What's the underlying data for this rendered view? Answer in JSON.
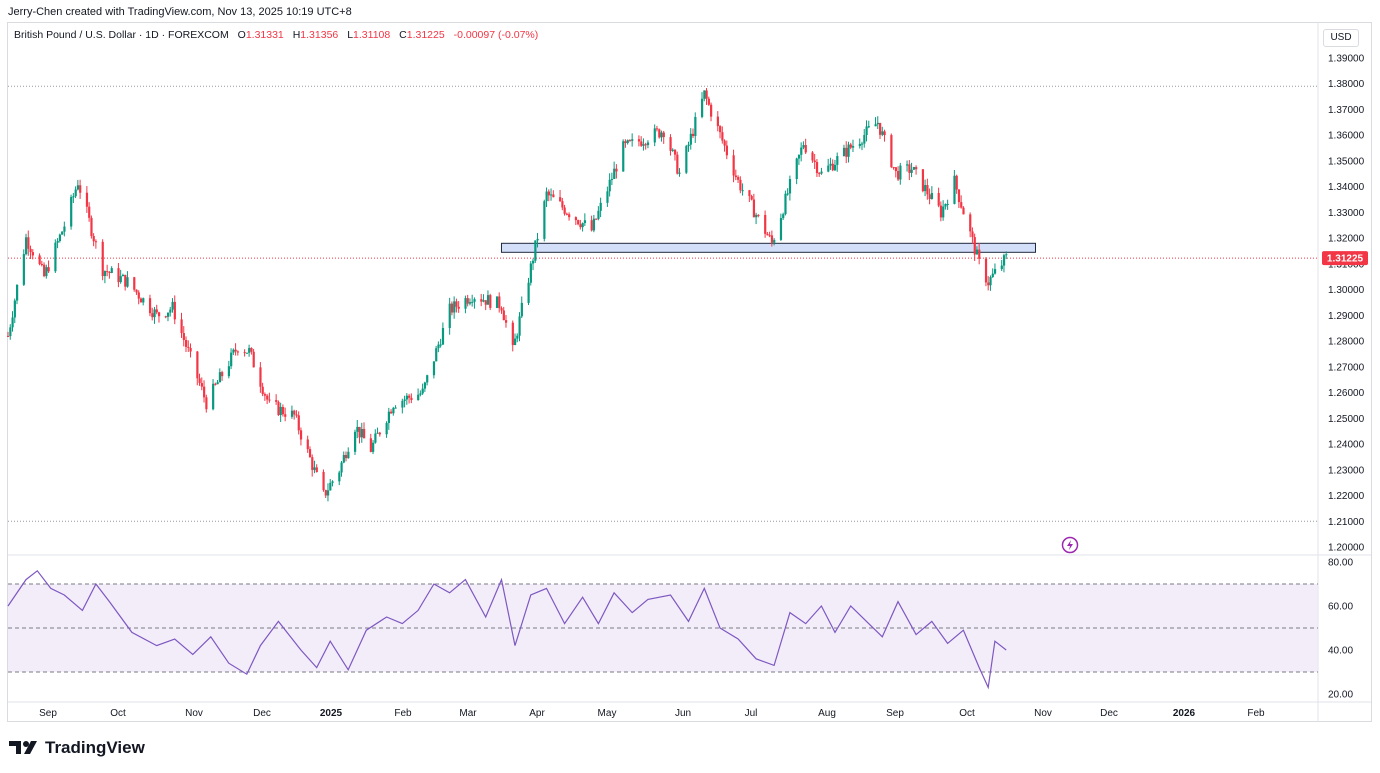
{
  "header": {
    "created_by": "Jerry-Chen created with TradingView.com, Nov 13, 2025 10:19 UTC+8"
  },
  "legend": {
    "symbol": "British Pound / U.S. Dollar · 1D · FOREXCOM",
    "open_label": "O",
    "open": "1.31331",
    "high_label": "H",
    "high": "1.31356",
    "low_label": "L",
    "low": "1.31108",
    "close_label": "C",
    "close": "1.31225",
    "change": "-0.00097 (-0.07%)"
  },
  "currency_button": "USD",
  "last_price_tag": "1.31225",
  "brand": {
    "name": "TradingView"
  },
  "colors": {
    "up": "#089981",
    "down": "#f23645",
    "rsi_line": "#7e57c2",
    "rsi_band": "#ede7f6",
    "zone_fill": "#c8d7f7",
    "zone_stroke": "#1f2a3f"
  },
  "chart_data": {
    "type": "candlestick",
    "title": "British Pound / U.S. Dollar · 1D · FOREXCOM",
    "ylim": [
      1.2,
      1.39
    ],
    "price_ticks": [
      "1.39000",
      "1.38000",
      "1.37000",
      "1.36000",
      "1.35000",
      "1.34000",
      "1.33000",
      "1.32000",
      "1.31000",
      "1.30000",
      "1.29000",
      "1.28000",
      "1.27000",
      "1.26000",
      "1.25000",
      "1.24000",
      "1.23000",
      "1.22000",
      "1.21000",
      "1.20000"
    ],
    "x_ticks": [
      "Sep",
      "Oct",
      "Nov",
      "Dec",
      "2025",
      "Feb",
      "Mar",
      "Apr",
      "May",
      "Jun",
      "Jul",
      "Aug",
      "Sep",
      "Oct",
      "Nov",
      "Dec",
      "2026",
      "Feb"
    ],
    "path_dates": [
      "2024-08-26",
      "2024-09-03",
      "2024-09-06",
      "2024-09-11",
      "2024-09-20",
      "2024-09-26",
      "2024-10-07",
      "2024-10-18",
      "2024-10-31",
      "2024-11-07",
      "2024-11-22",
      "2024-12-06",
      "2024-12-11",
      "2024-12-20",
      "2024-12-31",
      "2025-01-13",
      "2025-01-20",
      "2025-01-27",
      "2025-02-03",
      "2025-02-13",
      "2025-02-26",
      "2025-03-10",
      "2025-03-20",
      "2025-04-02",
      "2025-04-07",
      "2025-04-22",
      "2025-05-12",
      "2025-05-26",
      "2025-06-13",
      "2025-06-20",
      "2025-07-01",
      "2025-07-16",
      "2025-07-31",
      "2025-08-14",
      "2025-08-22",
      "2025-09-16",
      "2025-09-24",
      "2025-10-01",
      "2025-10-14",
      "2025-10-20",
      "2025-10-31",
      "2025-11-04",
      "2025-11-12"
    ],
    "path_closes": [
      1.282,
      1.32,
      1.315,
      1.305,
      1.325,
      1.342,
      1.308,
      1.303,
      1.29,
      1.293,
      1.256,
      1.278,
      1.276,
      1.255,
      1.251,
      1.22,
      1.23,
      1.247,
      1.238,
      1.256,
      1.26,
      1.292,
      1.298,
      1.294,
      1.276,
      1.337,
      1.323,
      1.355,
      1.362,
      1.345,
      1.376,
      1.342,
      1.318,
      1.357,
      1.345,
      1.365,
      1.345,
      1.347,
      1.33,
      1.342,
      1.31,
      1.303,
      1.3123
    ],
    "series_high": 1.379,
    "series_low": 1.21,
    "horizontal_lines": [
      {
        "name": "high-line",
        "price": 1.379
      },
      {
        "name": "low-line",
        "price": 1.21
      },
      {
        "name": "last-price-line",
        "price": 1.31225
      }
    ],
    "support_zone": {
      "start": "2025-04-02",
      "end": "2025-11-25",
      "top": 1.318,
      "bottom": 1.3145
    },
    "last_price": 1.31225,
    "rsi": {
      "ylim": [
        20,
        80
      ],
      "ticks": [
        "80.00",
        "60.00",
        "40.00",
        "20.00"
      ],
      "band_upper": 70,
      "band_middle": 50,
      "band_lower": 30,
      "dates": [
        "2024-08-26",
        "2024-09-03",
        "2024-09-08",
        "2024-09-14",
        "2024-09-20",
        "2024-09-28",
        "2024-10-04",
        "2024-10-10",
        "2024-10-20",
        "2024-10-31",
        "2024-11-08",
        "2024-11-16",
        "2024-11-24",
        "2024-12-02",
        "2024-12-10",
        "2024-12-16",
        "2024-12-24",
        "2025-01-03",
        "2025-01-10",
        "2025-01-16",
        "2025-01-24",
        "2025-02-01",
        "2025-02-10",
        "2025-02-17",
        "2025-02-24",
        "2025-03-03",
        "2025-03-10",
        "2025-03-17",
        "2025-03-26",
        "2025-04-02",
        "2025-04-08",
        "2025-04-15",
        "2025-04-22",
        "2025-04-30",
        "2025-05-08",
        "2025-05-15",
        "2025-05-22",
        "2025-05-30",
        "2025-06-06",
        "2025-06-16",
        "2025-06-24",
        "2025-07-01",
        "2025-07-08",
        "2025-07-16",
        "2025-07-24",
        "2025-08-01",
        "2025-08-08",
        "2025-08-15",
        "2025-08-22",
        "2025-08-28",
        "2025-09-04",
        "2025-09-11",
        "2025-09-18",
        "2025-09-25",
        "2025-10-03",
        "2025-10-10",
        "2025-10-17",
        "2025-10-24",
        "2025-10-31",
        "2025-11-04",
        "2025-11-07",
        "2025-11-12"
      ],
      "values": [
        60,
        72,
        76,
        68,
        65,
        58,
        70,
        62,
        48,
        42,
        45,
        38,
        46,
        34,
        29,
        42,
        53,
        40,
        32,
        44,
        31,
        49,
        55,
        52,
        58,
        70,
        66,
        72,
        55,
        72,
        42,
        65,
        68,
        52,
        64,
        52,
        66,
        57,
        63,
        65,
        53,
        68,
        50,
        45,
        36,
        33,
        57,
        52,
        60,
        48,
        60,
        53,
        46,
        62,
        47,
        53,
        43,
        49,
        32,
        23,
        44,
        40
      ]
    }
  }
}
